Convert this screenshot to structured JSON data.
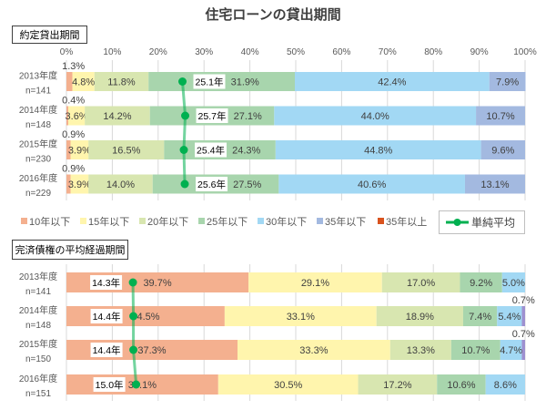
{
  "title": "住宅ローンの貸出期間",
  "legend": {
    "position": "bottom",
    "items": [
      {
        "name": "10年以下",
        "color": "#f4b08f"
      },
      {
        "name": "15年以下",
        "color": "#fff5ad"
      },
      {
        "name": "20年以下",
        "color": "#d8e6b0"
      },
      {
        "name": "25年以下",
        "color": "#a8d5ad"
      },
      {
        "name": "30年以下",
        "color": "#a2d8f4"
      },
      {
        "name": "35年以下",
        "color": "#a3b9e0"
      },
      {
        "name": "35年以上",
        "color": "#d9531e"
      }
    ],
    "average": {
      "name": "単純平均",
      "color": "#00b050"
    }
  },
  "chart_data": [
    {
      "type": "bar",
      "stacked": true,
      "orientation": "horizontal",
      "title": "約定貸出期間",
      "xlim": [
        0,
        100
      ],
      "xticks": [
        "0%",
        "10%",
        "20%",
        "30%",
        "40%",
        "50%",
        "60%",
        "70%",
        "80%",
        "90%",
        "100%"
      ],
      "grid": true,
      "categories": [
        "2013年度",
        "2014年度",
        "2015年度",
        "2016年度"
      ],
      "sample_sizes": [
        "n=141",
        "n=148",
        "n=230",
        "n=229"
      ],
      "series": [
        {
          "name": "10年以下",
          "color": "#f4b08f",
          "values": [
            1.3,
            0.4,
            0.9,
            0.9
          ],
          "labels": [
            "1.3%",
            "0.4%",
            "0.9%",
            "0.9%"
          ]
        },
        {
          "name": "15年以下",
          "color": "#fff5ad",
          "values": [
            4.8,
            3.6,
            3.9,
            3.9
          ],
          "labels": [
            "4.8%",
            "3.6%",
            "3.9%",
            "3.9%"
          ]
        },
        {
          "name": "20年以下",
          "color": "#d8e6b0",
          "values": [
            11.8,
            14.2,
            16.5,
            14.0
          ],
          "labels": [
            "11.8%",
            "14.2%",
            "16.5%",
            "14.0%"
          ]
        },
        {
          "name": "25年以下",
          "color": "#a8d5ad",
          "values": [
            31.9,
            27.1,
            24.3,
            27.5
          ],
          "labels": [
            "31.9%",
            "27.1%",
            "24.3%",
            "27.5%"
          ]
        },
        {
          "name": "30年以下",
          "color": "#a2d8f4",
          "values": [
            42.4,
            44.0,
            44.8,
            40.6
          ],
          "labels": [
            "42.4%",
            "44.0%",
            "44.8%",
            "40.6%"
          ]
        },
        {
          "name": "35年以下",
          "color": "#a3b9e0",
          "values": [
            7.9,
            10.7,
            9.6,
            13.1
          ],
          "labels": [
            "7.9%",
            "10.7%",
            "9.6%",
            "13.1%"
          ]
        }
      ],
      "average": {
        "name": "単純平均",
        "values": [
          25.1,
          25.7,
          25.4,
          25.6
        ],
        "labels": [
          "25.1年",
          "25.7年",
          "25.4年",
          "25.6年"
        ]
      }
    },
    {
      "type": "bar",
      "stacked": true,
      "orientation": "horizontal",
      "title": "完済債権の平均経過期間",
      "xlim": [
        0,
        100
      ],
      "grid": true,
      "categories": [
        "2013年度",
        "2014年度",
        "2015年度",
        "2016年度"
      ],
      "sample_sizes": [
        "n=141",
        "n=148",
        "n=150",
        "n=151"
      ],
      "series": [
        {
          "name": "10年以下",
          "color": "#f4b08f",
          "values": [
            39.7,
            34.5,
            37.3,
            33.1
          ],
          "labels": [
            "39.7%",
            "34.5%",
            "37.3%",
            "33.1%"
          ]
        },
        {
          "name": "15年以下",
          "color": "#fff5ad",
          "values": [
            29.1,
            33.1,
            33.3,
            30.5
          ],
          "labels": [
            "29.1%",
            "33.1%",
            "33.3%",
            "30.5%"
          ]
        },
        {
          "name": "20年以下",
          "color": "#d8e6b0",
          "values": [
            17.0,
            18.9,
            13.3,
            17.2
          ],
          "labels": [
            "17.0%",
            "18.9%",
            "13.3%",
            "17.2%"
          ]
        },
        {
          "name": "25年以下",
          "color": "#a8d5ad",
          "values": [
            9.2,
            7.4,
            10.7,
            10.6
          ],
          "labels": [
            "9.2%",
            "7.4%",
            "10.7%",
            "10.6%"
          ]
        },
        {
          "name": "30年以下",
          "color": "#a2d8f4",
          "values": [
            5.0,
            5.4,
            4.7,
            8.6
          ],
          "labels": [
            "5.0%",
            "5.4%",
            "4.7%",
            "8.6%"
          ]
        },
        {
          "name": "35年以下",
          "color": "#9e90d0",
          "values": [
            null,
            0.7,
            0.7,
            null
          ],
          "labels": [
            null,
            "0.7%",
            "0.7%",
            null
          ]
        }
      ],
      "average": {
        "name": "単純平均",
        "values": [
          14.3,
          14.4,
          14.4,
          15.0
        ],
        "labels": [
          "14.3年",
          "14.4年",
          "14.4年",
          "15.0年"
        ]
      }
    }
  ]
}
